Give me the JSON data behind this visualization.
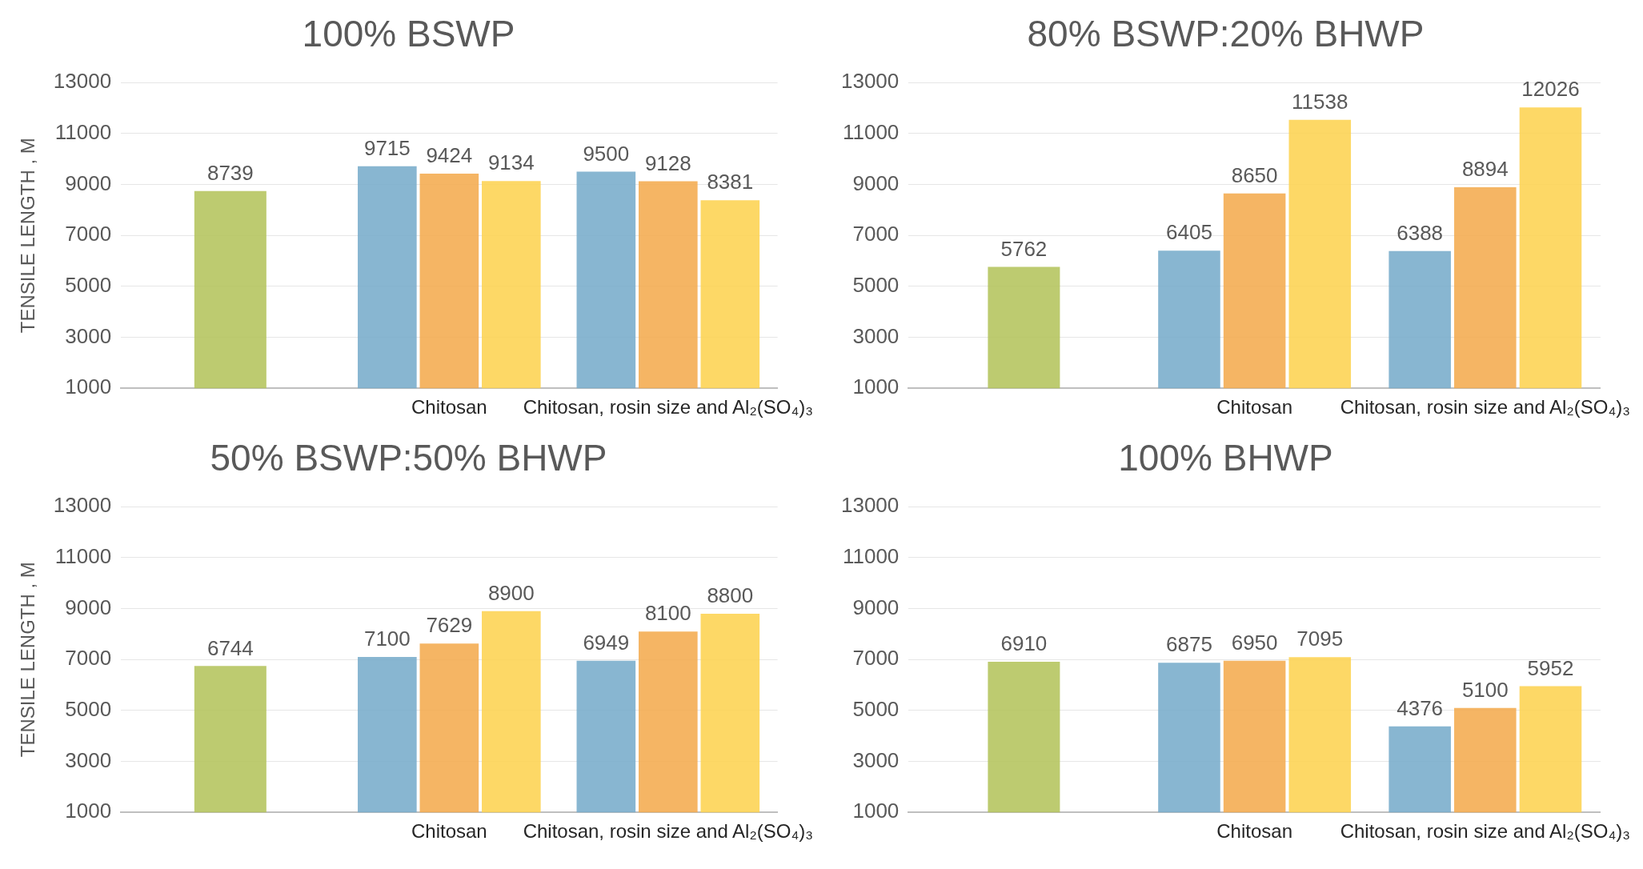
{
  "chart_data": [
    {
      "type": "bar",
      "title": "100% BSWP",
      "ylabel": "TENSILE LENGTH , M",
      "categories": [
        null,
        "Chitosan",
        "Chitosan, rosin size and Al₂(SO₄)₃"
      ],
      "series": [
        {
          "color": "#b3c35a",
          "values": [
            8739,
            null,
            null
          ]
        },
        {
          "color": "#76abca",
          "values": [
            null,
            9715,
            9500
          ]
        },
        {
          "color": "#f4aa4c",
          "values": [
            null,
            9424,
            9128
          ]
        },
        {
          "color": "#fdd24e",
          "values": [
            null,
            9134,
            8381
          ]
        }
      ],
      "ylim": [
        1000,
        13000
      ],
      "yticks": [
        1000,
        3000,
        5000,
        7000,
        9000,
        11000,
        13000
      ],
      "grid": "y",
      "legend": false,
      "data_labels": true
    },
    {
      "type": "bar",
      "title": "80% BSWP:20% BHWP",
      "categories": [
        null,
        "Chitosan",
        "Chitosan, rosin size and Al₂(SO₄)₃"
      ],
      "series": [
        {
          "color": "#b3c35a",
          "values": [
            5762,
            null,
            null
          ]
        },
        {
          "color": "#76abca",
          "values": [
            null,
            6405,
            6388
          ]
        },
        {
          "color": "#f4aa4c",
          "values": [
            null,
            8650,
            8894
          ]
        },
        {
          "color": "#fdd24e",
          "values": [
            null,
            11538,
            12026
          ]
        }
      ],
      "ylim": [
        1000,
        13000
      ],
      "yticks": [
        1000,
        3000,
        5000,
        7000,
        9000,
        11000,
        13000
      ],
      "grid": "y",
      "legend": false,
      "data_labels": true
    },
    {
      "type": "bar",
      "title": "50% BSWP:50% BHWP",
      "ylabel": "TENSILE LENGTH , M",
      "categories": [
        null,
        "Chitosan",
        "Chitosan, rosin size and Al₂(SO₄)₃"
      ],
      "series": [
        {
          "color": "#b3c35a",
          "values": [
            6744,
            null,
            null
          ]
        },
        {
          "color": "#76abca",
          "values": [
            null,
            7100,
            6949
          ]
        },
        {
          "color": "#f4aa4c",
          "values": [
            null,
            7629,
            8100
          ]
        },
        {
          "color": "#fdd24e",
          "values": [
            null,
            8900,
            8800
          ]
        }
      ],
      "ylim": [
        1000,
        13000
      ],
      "yticks": [
        1000,
        3000,
        5000,
        7000,
        9000,
        11000,
        13000
      ],
      "grid": "y",
      "legend": false,
      "data_labels": true
    },
    {
      "type": "bar",
      "title": "100% BHWP",
      "categories": [
        null,
        "Chitosan",
        "Chitosan, rosin size and Al₂(SO₄)₃"
      ],
      "series": [
        {
          "color": "#b3c35a",
          "values": [
            6910,
            null,
            null
          ]
        },
        {
          "color": "#76abca",
          "values": [
            null,
            6875,
            4376
          ]
        },
        {
          "color": "#f4aa4c",
          "values": [
            null,
            6950,
            5100
          ]
        },
        {
          "color": "#fdd24e",
          "values": [
            null,
            7095,
            5952
          ]
        }
      ],
      "ylim": [
        1000,
        13000
      ],
      "yticks": [
        1000,
        3000,
        5000,
        7000,
        9000,
        11000,
        13000
      ],
      "grid": "y",
      "legend": false,
      "data_labels": true
    }
  ]
}
